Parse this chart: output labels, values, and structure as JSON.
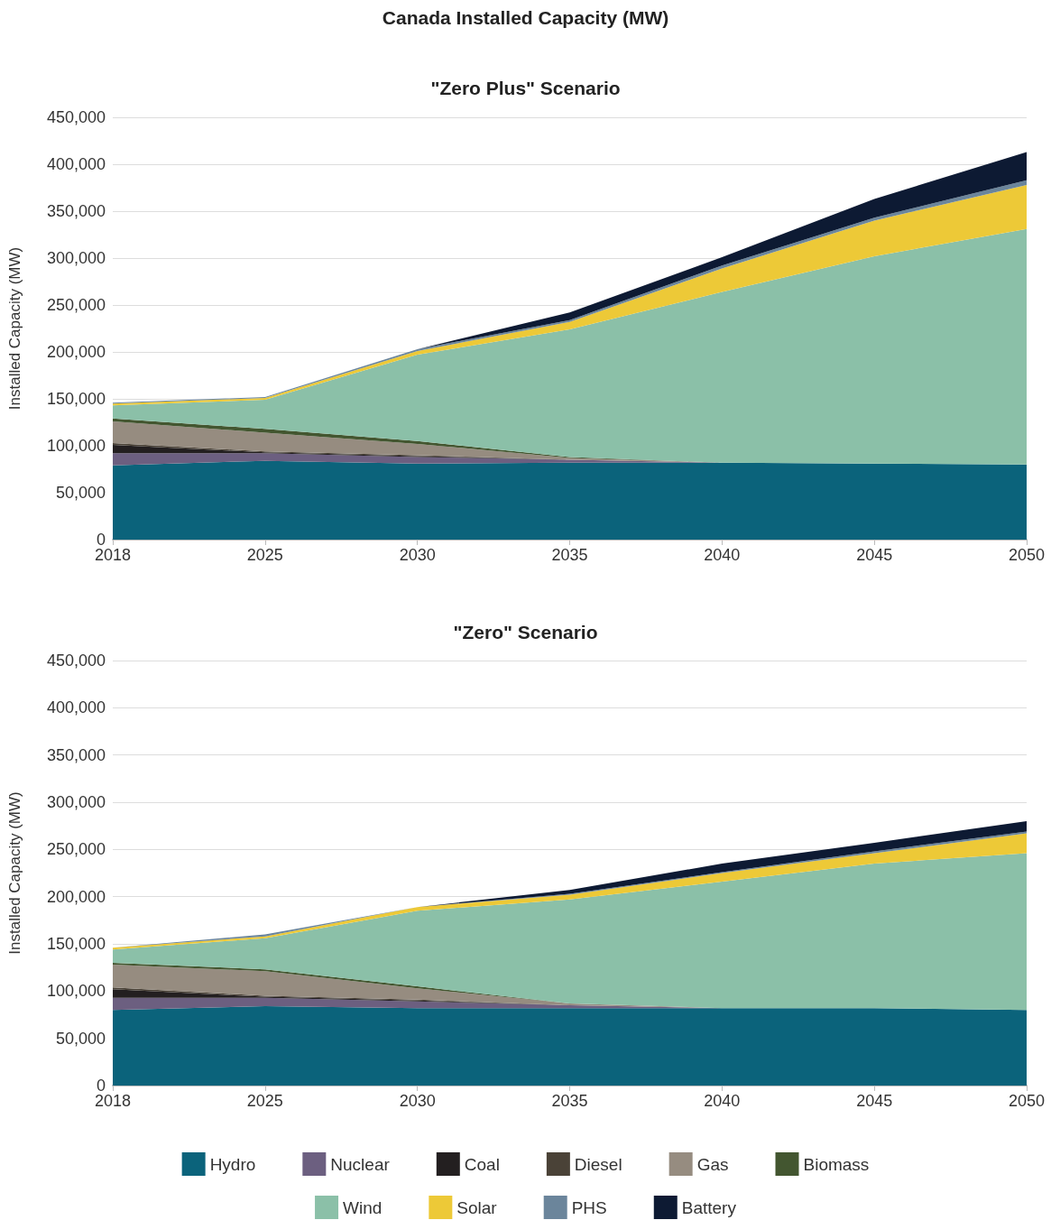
{
  "chart_data": [
    {
      "type": "area",
      "title": "Canada Installed Capacity (MW)",
      "subtitle": "\"Zero Plus\" Scenario",
      "ylabel": "Installed Capacity (MW)",
      "stacked": true,
      "grid": "y",
      "legend": false,
      "categories": [
        "2018",
        "2025",
        "2030",
        "2035",
        "2040",
        "2045",
        "2050"
      ],
      "ylim": [
        0,
        450000
      ],
      "yticks": [
        {
          "value": 0,
          "label": "0"
        },
        {
          "value": 50000,
          "label": "50,000"
        },
        {
          "value": 100000,
          "label": "100,000"
        },
        {
          "value": 150000,
          "label": "150,000"
        },
        {
          "value": 200000,
          "label": "200,000"
        },
        {
          "value": 250000,
          "label": "250,000"
        },
        {
          "value": 300000,
          "label": "300,000"
        },
        {
          "value": 350000,
          "label": "350,000"
        },
        {
          "value": 400000,
          "label": "400,000"
        },
        {
          "value": 450000,
          "label": "450,000"
        }
      ],
      "series": [
        {
          "color": "#0b637b",
          "values": [
            79000,
            84000,
            81000,
            82000,
            82000,
            81000,
            80000
          ]
        },
        {
          "color": "#6c5f80",
          "values": [
            13000,
            8000,
            7000,
            3000,
            0,
            0,
            0
          ]
        },
        {
          "color": "#231f20",
          "values": [
            9000,
            1000,
            1000,
            0,
            0,
            0,
            0
          ]
        },
        {
          "color": "#4a4237",
          "values": [
            2000,
            1000,
            1000,
            0,
            0,
            0,
            0
          ]
        },
        {
          "color": "#968c80",
          "values": [
            23000,
            20000,
            12000,
            2000,
            0,
            0,
            0
          ]
        },
        {
          "color": "#435630",
          "values": [
            3000,
            4000,
            3000,
            1000,
            0,
            0,
            0
          ]
        },
        {
          "color": "#8bc0a8",
          "values": [
            14000,
            31000,
            92000,
            136000,
            182000,
            221000,
            251000
          ]
        },
        {
          "color": "#edc937",
          "values": [
            2000,
            2000,
            4000,
            8000,
            25000,
            38000,
            47000
          ]
        },
        {
          "color": "#6b859b",
          "values": [
            1000,
            1000,
            2000,
            2000,
            3000,
            3000,
            5000
          ]
        },
        {
          "color": "#0d1a33",
          "values": [
            0,
            0,
            0,
            8000,
            9000,
            20000,
            30000
          ]
        }
      ]
    },
    {
      "type": "area",
      "subtitle": "\"Zero\" Scenario",
      "ylabel": "Installed Capacity (MW)",
      "stacked": true,
      "grid": "y",
      "legend": "bottom",
      "categories": [
        "2018",
        "2025",
        "2030",
        "2035",
        "2040",
        "2045",
        "2050"
      ],
      "ylim": [
        0,
        450000
      ],
      "yticks": [
        {
          "value": 0,
          "label": "0"
        },
        {
          "value": 50000,
          "label": "50,000"
        },
        {
          "value": 100000,
          "label": "100,000"
        },
        {
          "value": 150000,
          "label": "150,000"
        },
        {
          "value": 200000,
          "label": "200,000"
        },
        {
          "value": 250000,
          "label": "250,000"
        },
        {
          "value": 300000,
          "label": "300,000"
        },
        {
          "value": 350000,
          "label": "350,000"
        },
        {
          "value": 400000,
          "label": "400,000"
        },
        {
          "value": 450000,
          "label": "450,000"
        }
      ],
      "series": [
        {
          "name": "Hydro",
          "color": "#0b637b",
          "values": [
            80000,
            84000,
            82000,
            82000,
            82000,
            82000,
            80000
          ]
        },
        {
          "name": "Nuclear",
          "color": "#6c5f80",
          "values": [
            13000,
            9000,
            7000,
            3000,
            0,
            0,
            0
          ]
        },
        {
          "name": "Coal",
          "color": "#231f20",
          "values": [
            9000,
            1000,
            1000,
            0,
            0,
            0,
            0
          ]
        },
        {
          "name": "Diesel",
          "color": "#4a4237",
          "values": [
            2000,
            1000,
            1000,
            0,
            0,
            0,
            0
          ]
        },
        {
          "name": "Gas",
          "color": "#968c80",
          "values": [
            24000,
            26000,
            12000,
            2000,
            0,
            0,
            0
          ]
        },
        {
          "name": "Biomass",
          "color": "#435630",
          "values": [
            2000,
            2000,
            2000,
            0,
            0,
            0,
            0
          ]
        },
        {
          "name": "Wind",
          "color": "#8bc0a8",
          "values": [
            14000,
            33000,
            80000,
            110000,
            134000,
            153000,
            166000
          ]
        },
        {
          "name": "Solar",
          "color": "#edc937",
          "values": [
            2000,
            2000,
            4000,
            5000,
            9000,
            11000,
            21000
          ]
        },
        {
          "name": "PHS",
          "color": "#6b859b",
          "values": [
            0,
            2000,
            0,
            1000,
            1000,
            2000,
            2000
          ]
        },
        {
          "name": "Battery",
          "color": "#0d1a33",
          "values": [
            0,
            0,
            0,
            4000,
            9000,
            9000,
            11000
          ]
        }
      ]
    }
  ]
}
